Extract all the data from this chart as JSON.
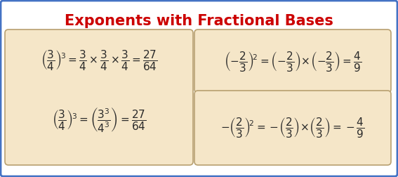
{
  "title": "Exponents with Fractional Bases",
  "title_color": "#cc0000",
  "bg_color": "#ffffff",
  "box_color": "#f5e6c8",
  "box_edge_color": "#b8a070",
  "outer_border_color": "#4472c4",
  "math_color": "#2a2a2a",
  "left_eq1": "$\\left(\\dfrac{3}{4}\\right)^{\\!3} = \\dfrac{3}{4} \\times \\dfrac{3}{4} \\times \\dfrac{3}{4} = \\dfrac{27}{64}$",
  "left_eq2": "$\\left(\\dfrac{3}{4}\\right)^{\\!3} = \\left(\\dfrac{3^3}{4^3}\\right) = \\dfrac{27}{64}$",
  "right_eq1": "$\\left(-\\dfrac{2}{3}\\right)^{\\!2} = \\left(-\\dfrac{2}{3}\\right)\\!\\times\\!\\left(-\\dfrac{2}{3}\\right) = \\dfrac{4}{9}$",
  "right_eq2": "$-\\left(\\dfrac{2}{3}\\right)^{\\!2} = -\\!\\left(\\dfrac{2}{3}\\right)\\!\\times\\!\\left(\\dfrac{2}{3}\\right) = -\\dfrac{4}{9}$"
}
